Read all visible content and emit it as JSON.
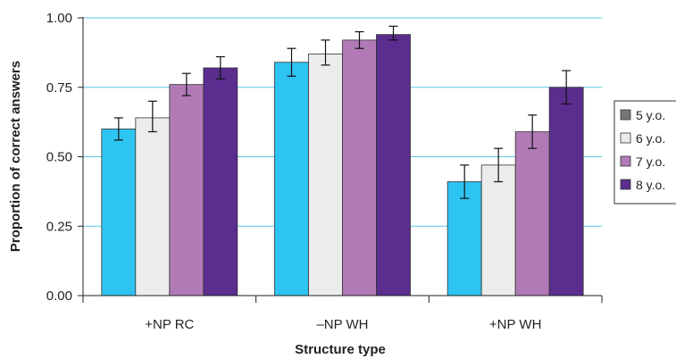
{
  "chart_data": {
    "type": "bar",
    "title": "",
    "xlabel": "Structure type",
    "ylabel": "Proportion of correct answers",
    "ylim": [
      0,
      1
    ],
    "yticks": [
      "0.00",
      "0.25",
      "0.50",
      "0.75",
      "1.00"
    ],
    "ytick_values": [
      0,
      0.25,
      0.5,
      0.75,
      1.0
    ],
    "grid": true,
    "legend_position": "right",
    "categories": [
      "+NP RC",
      "–NP WH",
      "+NP WH"
    ],
    "series": [
      {
        "name": "5 y.o.",
        "color": "#2ec4f1",
        "legend_color": "#777777",
        "values": [
          0.6,
          0.84,
          0.41
        ],
        "err_low": [
          0.56,
          0.79,
          0.35
        ],
        "err_high": [
          0.64,
          0.89,
          0.47
        ]
      },
      {
        "name": "6 y.o.",
        "color": "#ececec",
        "legend_color": "#ececec",
        "values": [
          0.64,
          0.87,
          0.47
        ],
        "err_low": [
          0.59,
          0.83,
          0.41
        ],
        "err_high": [
          0.7,
          0.92,
          0.53
        ]
      },
      {
        "name": "7 y.o.",
        "color": "#b17ab6",
        "legend_color": "#b17ab6",
        "values": [
          0.76,
          0.92,
          0.59
        ],
        "err_low": [
          0.72,
          0.89,
          0.53
        ],
        "err_high": [
          0.8,
          0.95,
          0.65
        ]
      },
      {
        "name": "8 y.o.",
        "color": "#5a2d8e",
        "legend_color": "#5a2d8e",
        "values": [
          0.82,
          0.94,
          0.75
        ],
        "err_low": [
          0.78,
          0.92,
          0.69
        ],
        "err_high": [
          0.86,
          0.97,
          0.81
        ]
      }
    ]
  }
}
